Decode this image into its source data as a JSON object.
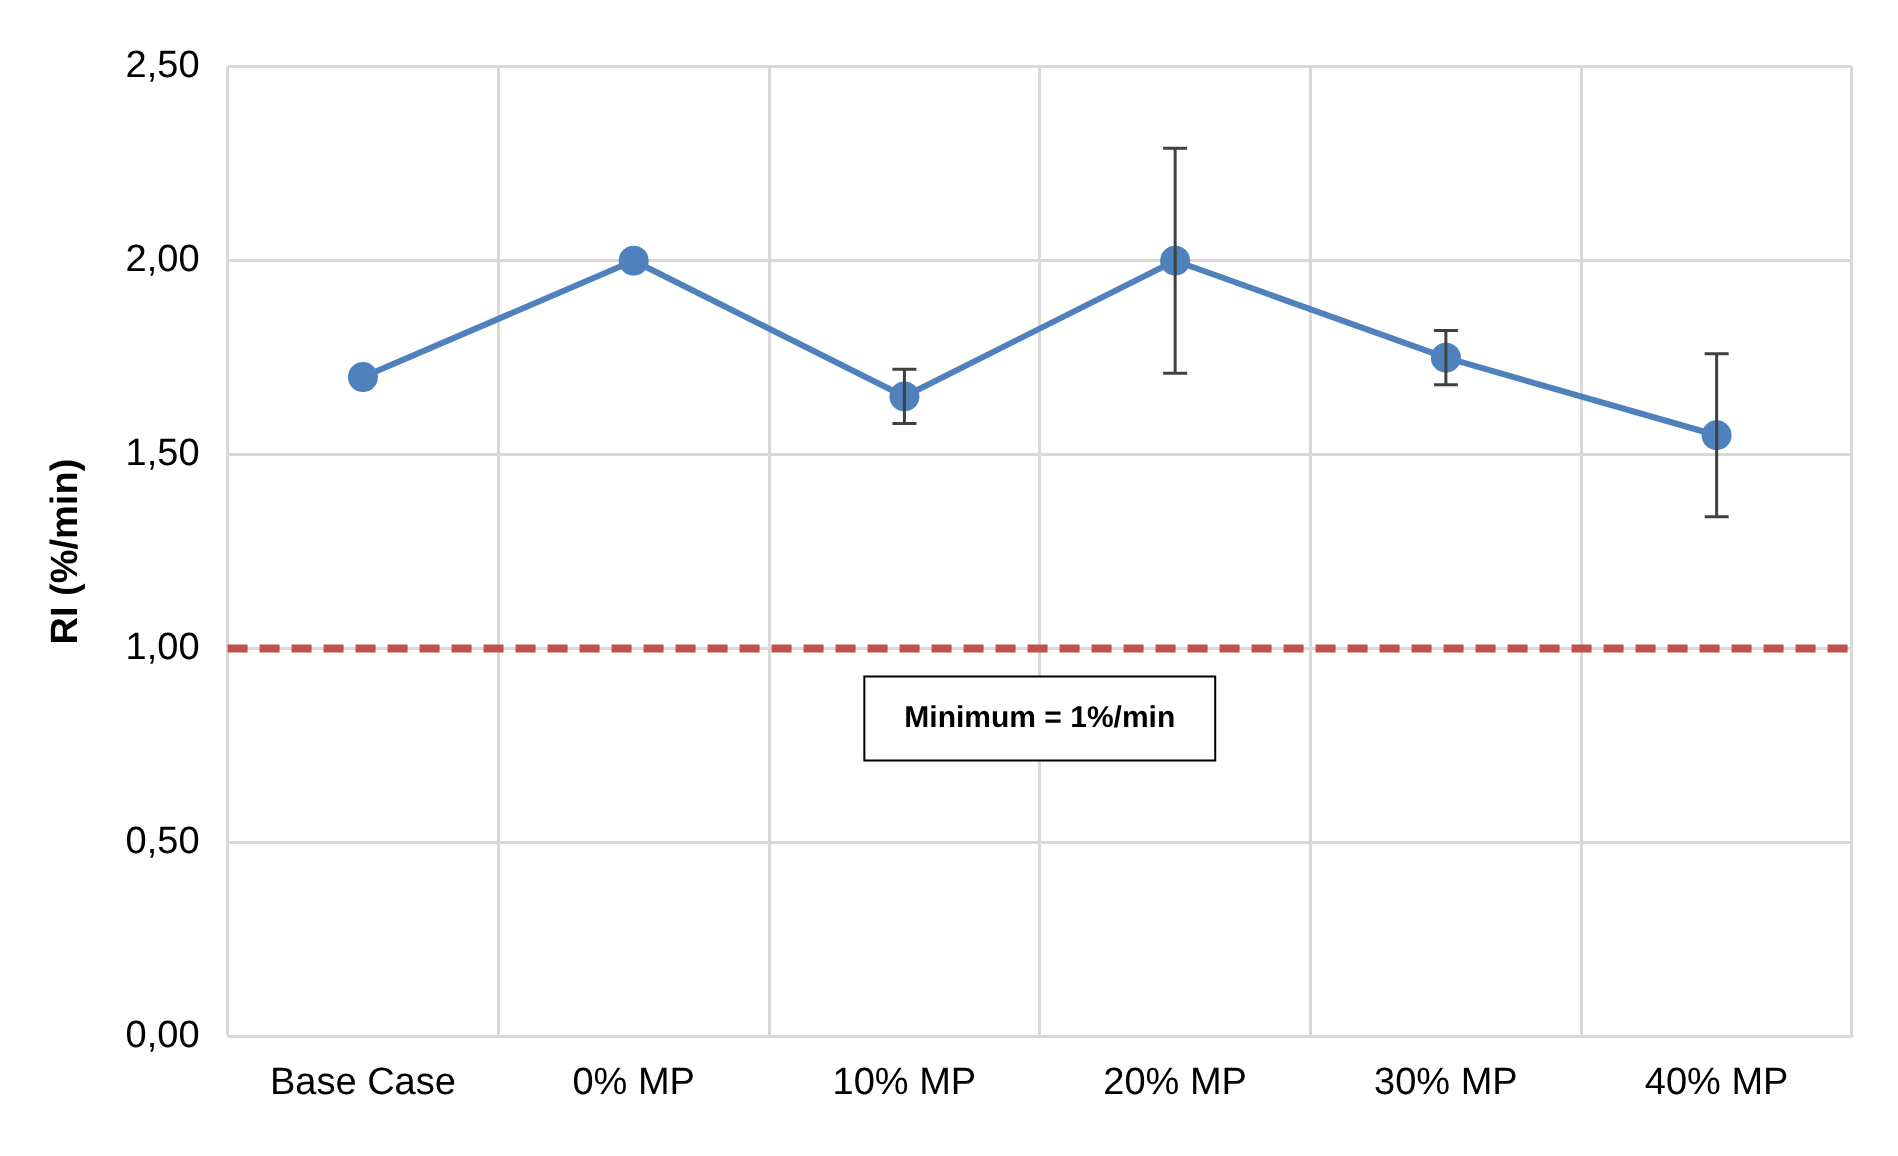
{
  "chart_data": {
    "type": "line",
    "ylabel": "RI (%/min)",
    "categories": [
      "Base Case",
      "0% MP",
      "10% MP",
      "20% MP",
      "30% MP",
      "40% MP"
    ],
    "series": [
      {
        "color": "#4f81bd",
        "values": [
          1.7,
          2.0,
          1.65,
          2.0,
          1.75,
          1.55
        ],
        "errors": [
          null,
          null,
          0.07,
          0.29,
          0.07,
          0.21
        ]
      }
    ],
    "ylim": [
      0,
      2.5
    ],
    "yticks": [
      {
        "value": 0,
        "label": "0,00"
      },
      {
        "value": 0.5,
        "label": "0,50"
      },
      {
        "value": 1,
        "label": "1,00"
      },
      {
        "value": 1.5,
        "label": "1,50"
      },
      {
        "value": 2,
        "label": "2,00"
      },
      {
        "value": 2.5,
        "label": "2,50"
      }
    ],
    "ref_lines": [
      {
        "axis": "y",
        "value": 1,
        "label": "Minimum = 1%/min",
        "color": "#c0504d",
        "line_style": "dashed"
      }
    ],
    "grid": true,
    "legend": false,
    "marker": "circle",
    "line_style": "solid"
  }
}
